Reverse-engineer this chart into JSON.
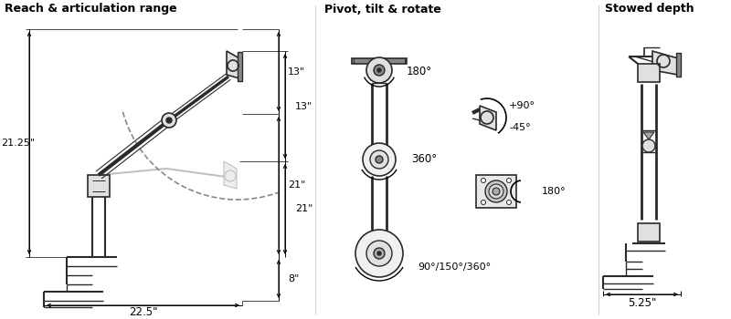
{
  "section1_title": "Reach & articulation range",
  "section2_title": "Pivot, tilt & rotate",
  "section3_title": "Stowed depth",
  "dim_21_25": "21.25\"",
  "dim_13": "13\"",
  "dim_21": "21\"",
  "dim_8": "8\"",
  "dim_22_5": "22.5\"",
  "dim_5_25": "5.25\"",
  "angle_180_pan": "180°",
  "angle_360": "360°",
  "angle_90_150_360": "90°/150°/360°",
  "angle_plus90": "+90°",
  "angle_minus45": "-45°",
  "angle_180_rot": "180°",
  "bg_color": "#ffffff",
  "lc": "#2a2a2a",
  "dc": "#000000",
  "gc": "#c0c0c0",
  "lf": "#e0e0e0"
}
